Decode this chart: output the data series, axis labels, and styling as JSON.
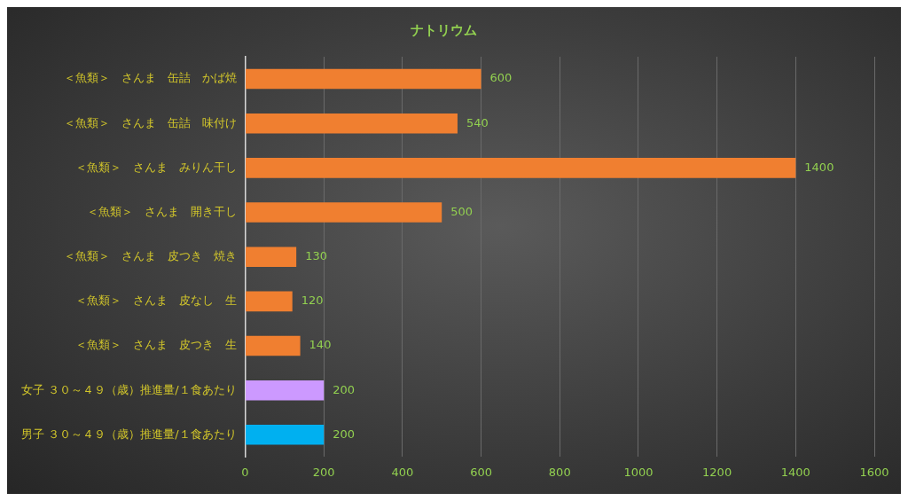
{
  "chart_data": {
    "type": "bar",
    "orientation": "horizontal",
    "title": "ナトリウム",
    "categories": [
      "＜魚類＞　さんま　缶詰　かば焼",
      "＜魚類＞　さんま　缶詰　味付け",
      "＜魚類＞　さんま　みりん干し",
      "＜魚類＞　さんま　開き干し",
      "＜魚類＞　さんま　皮つき　焼き",
      "＜魚類＞　さんま　皮なし　生",
      "＜魚類＞　さんま　皮つき　生",
      "女子 ３０～４９（歳）推進量/１食あたり",
      "男子 ３０～４９（歳）推進量/１食あたり"
    ],
    "values": [
      600,
      540,
      1400,
      500,
      130,
      120,
      140,
      200,
      200
    ],
    "colors": [
      "#f07f30",
      "#f07f30",
      "#f07f30",
      "#f07f30",
      "#f07f30",
      "#f07f30",
      "#f07f30",
      "#cc99ff",
      "#00b0f0"
    ],
    "xlim": [
      0,
      1600
    ],
    "xticks": [
      0,
      200,
      400,
      600,
      800,
      1000,
      1200,
      1400,
      1600
    ],
    "grid": "x",
    "legend": false,
    "data_labels": true
  }
}
